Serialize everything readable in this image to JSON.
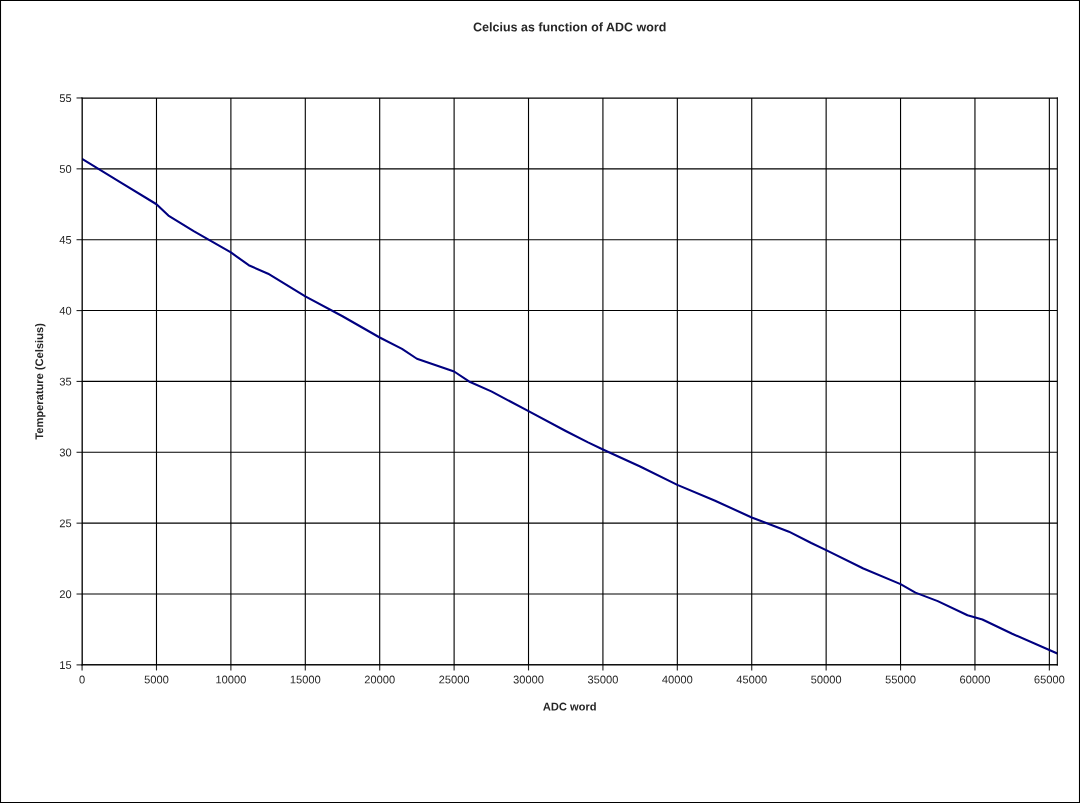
{
  "chart_data": {
    "type": "line",
    "title": "Celcius as function of ADC word",
    "xlabel": "ADC word",
    "ylabel": "Temperature (Celsius)",
    "x": [
      0,
      2500,
      5000,
      5800,
      7500,
      10000,
      11200,
      12500,
      15000,
      17500,
      20000,
      21500,
      22500,
      25000,
      26000,
      27500,
      30000,
      32500,
      34000,
      35000,
      37500,
      40000,
      42500,
      45000,
      46500,
      47500,
      49000,
      50000,
      52500,
      55000,
      56000,
      57500,
      59500,
      60500,
      62500,
      65535
    ],
    "series": [
      {
        "color": "#000080",
        "values": [
          50.7,
          49.1,
          47.5,
          46.7,
          45.6,
          44.1,
          43.2,
          42.6,
          41.0,
          39.6,
          38.1,
          37.3,
          36.6,
          35.7,
          35.0,
          34.3,
          32.9,
          31.5,
          30.7,
          30.2,
          29.0,
          27.7,
          26.6,
          25.4,
          24.8,
          24.4,
          23.6,
          23.1,
          21.8,
          20.7,
          20.1,
          19.5,
          18.5,
          18.2,
          17.2,
          15.8
        ]
      }
    ],
    "xlim": [
      0,
      65535
    ],
    "xticks": [
      0,
      5000,
      10000,
      15000,
      20000,
      25000,
      30000,
      35000,
      40000,
      45000,
      50000,
      55000,
      60000,
      65000
    ],
    "ylim": [
      15,
      55
    ],
    "yticks": [
      15,
      20,
      25,
      30,
      35,
      40,
      45,
      50,
      55
    ],
    "grid": true,
    "marker": "none",
    "line_style": "solid"
  }
}
